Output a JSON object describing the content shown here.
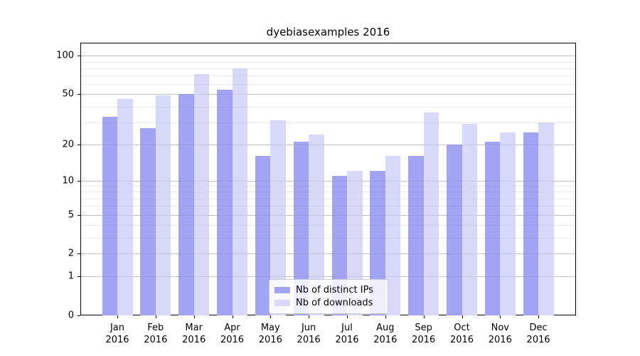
{
  "chart_data": {
    "type": "bar",
    "title": "dyebiasexamples 2016",
    "categories": [
      "Jan 2016",
      "Feb 2016",
      "Mar 2016",
      "Apr 2016",
      "May 2016",
      "Jun 2016",
      "Jul 2016",
      "Aug 2016",
      "Sep 2016",
      "Oct 2016",
      "Nov 2016",
      "Dec 2016"
    ],
    "series": [
      {
        "name": "Nb of distinct IPs",
        "color": "#a3a3f3",
        "values": [
          33,
          27,
          50,
          54,
          16,
          21,
          11,
          12,
          16,
          20,
          21,
          25
        ]
      },
      {
        "name": "Nb of downloads",
        "color": "#d8d8f8",
        "values": [
          46,
          49,
          72,
          80,
          31,
          24,
          12,
          16,
          36,
          29,
          25,
          30
        ]
      }
    ],
    "yscale": "log1p",
    "yticks": [
      100,
      50,
      20,
      10,
      5,
      2,
      1,
      0
    ],
    "minor_yticks": [
      3,
      4,
      6,
      7,
      8,
      9,
      30,
      40,
      60,
      70,
      80,
      90
    ],
    "ylim": [
      0,
      127
    ],
    "xlabel": "",
    "ylabel": "",
    "grid": "horizontal",
    "legend_position": "lower center"
  }
}
